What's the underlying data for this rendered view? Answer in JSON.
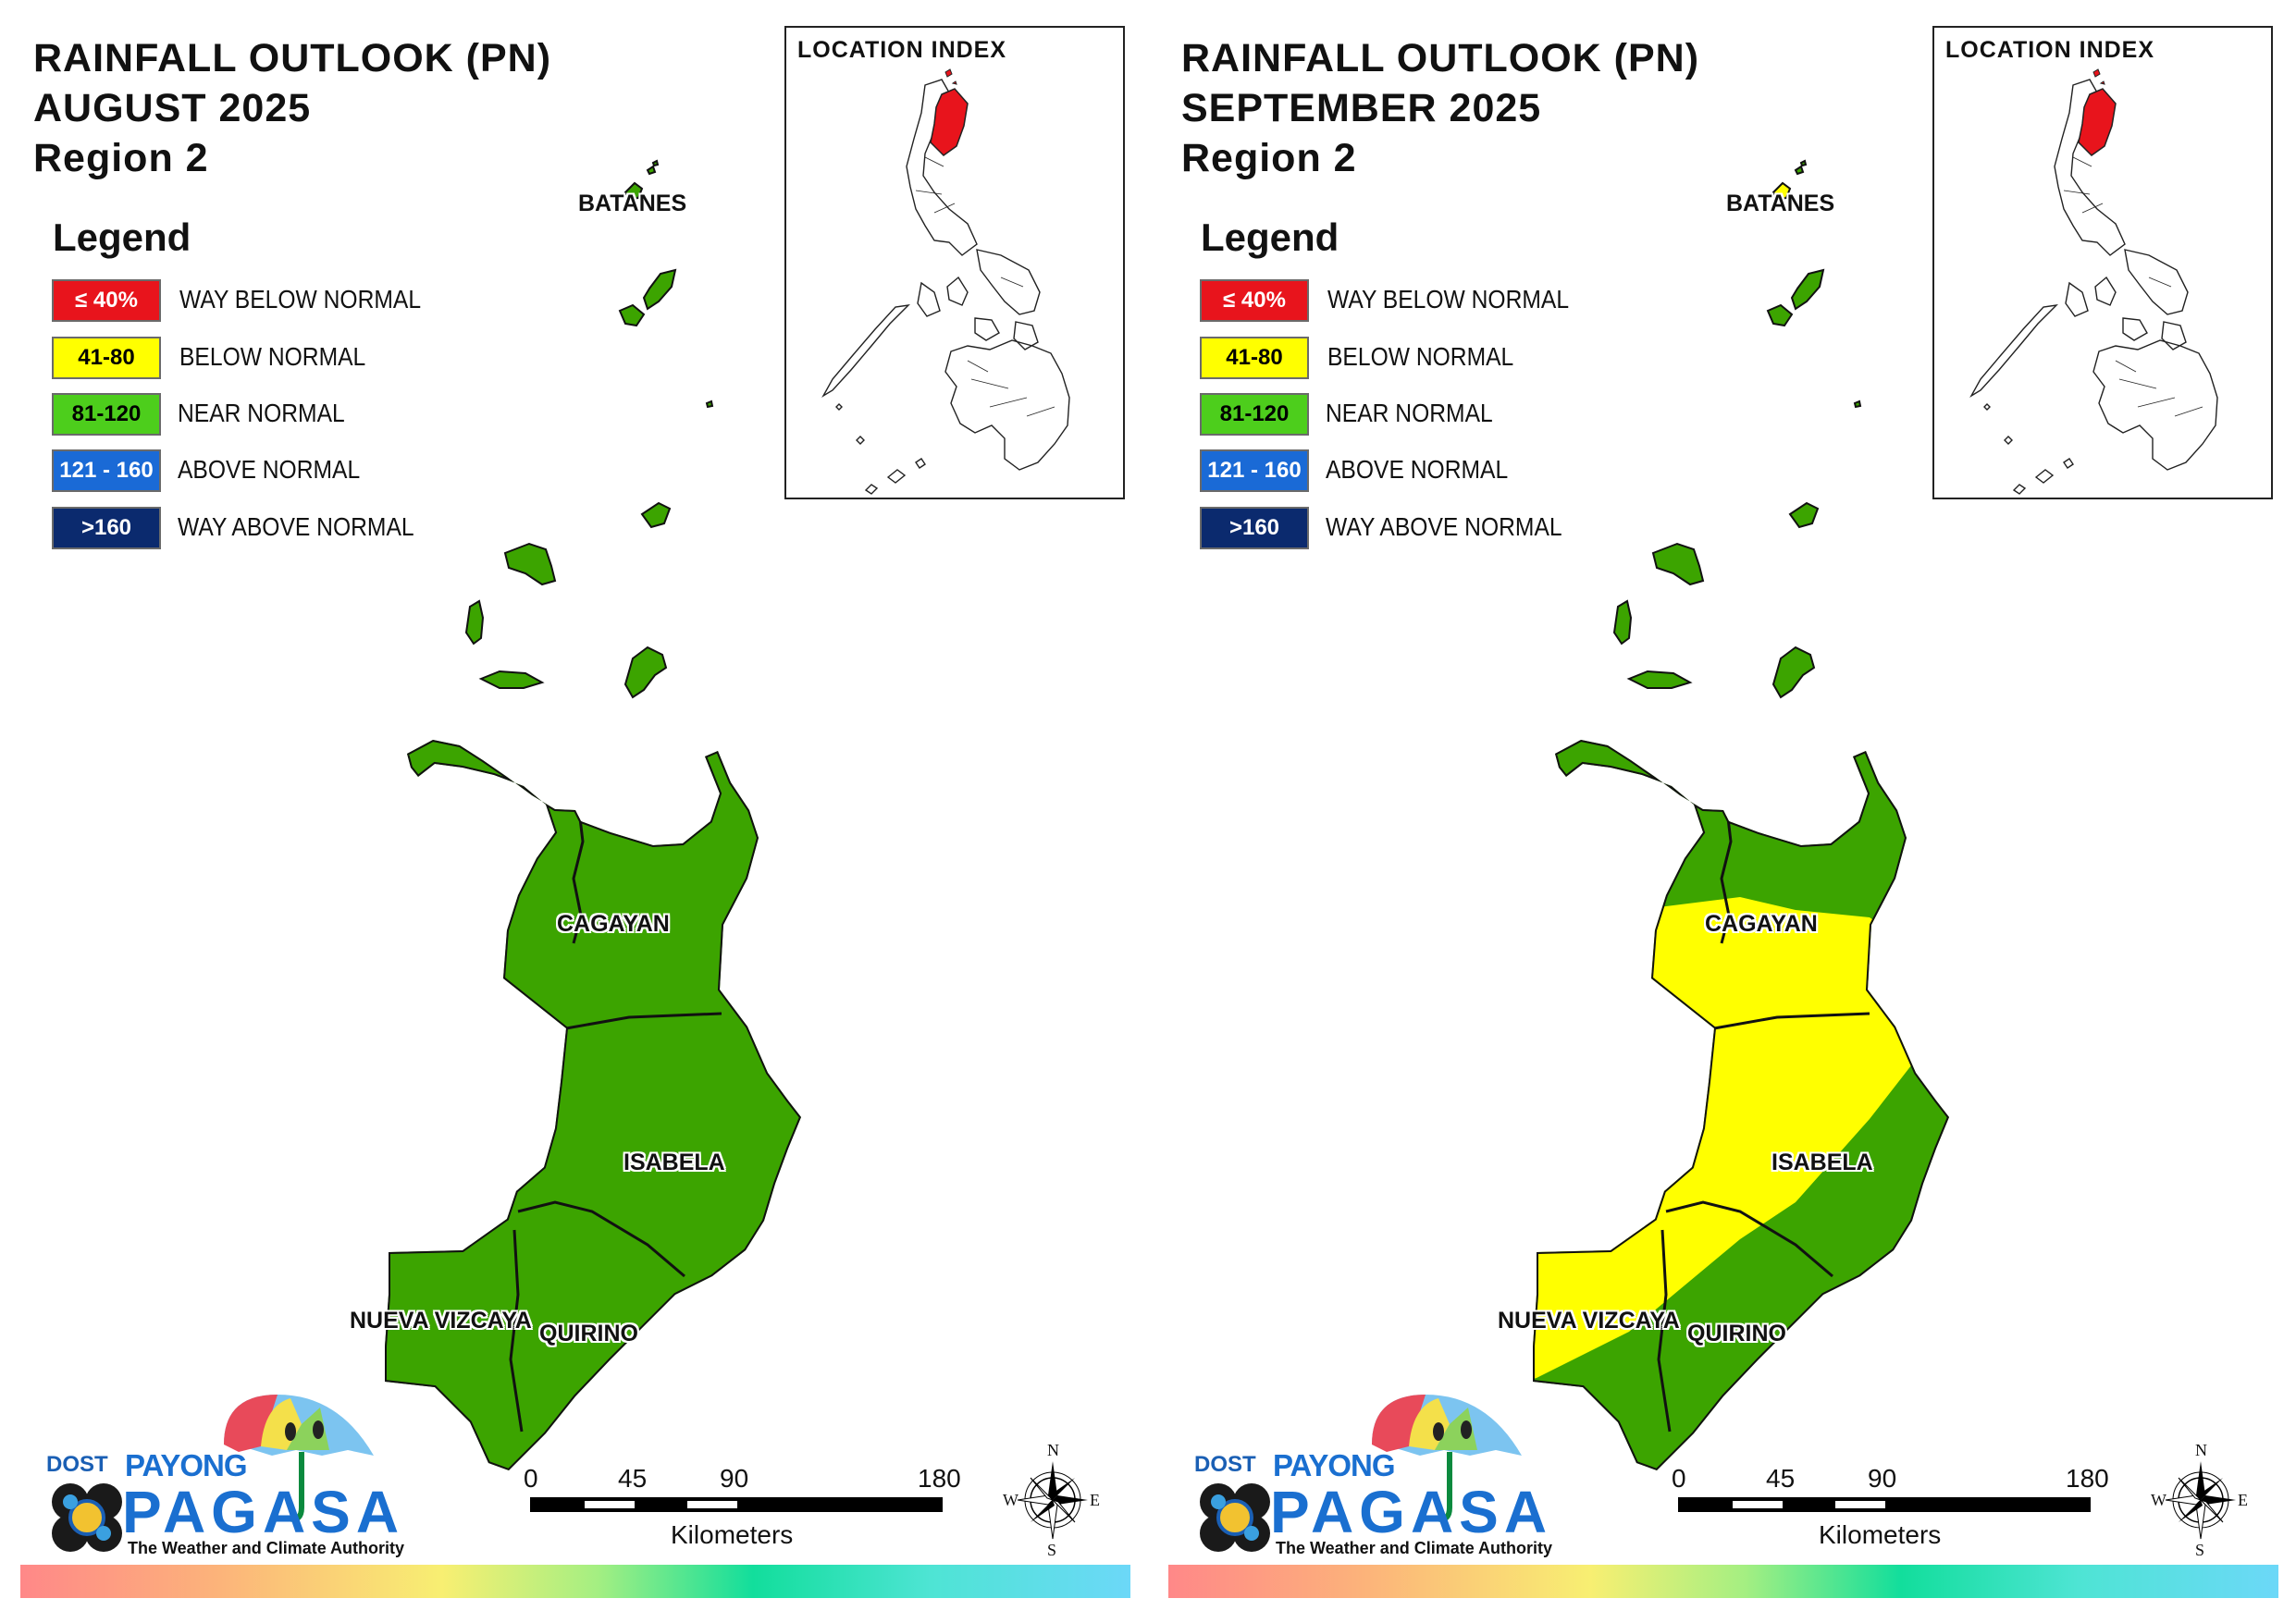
{
  "legend": {
    "heading": "Legend",
    "items": [
      {
        "range": "≤ 40%",
        "label": "WAY BELOW NORMAL",
        "color": "#e8141c",
        "text_color": "#ffffff"
      },
      {
        "range": "41-80",
        "label": "BELOW NORMAL",
        "color": "#ffff00",
        "text_color": "#000000"
      },
      {
        "range": "81-120",
        "label": "NEAR NORMAL",
        "color": "#4dce1c",
        "text_color": "#000000"
      },
      {
        "range": "121 - 160",
        "label": "ABOVE NORMAL",
        "color": "#1a6ad6",
        "text_color": "#ffffff"
      },
      {
        "range": ">160",
        "label": "WAY ABOVE NORMAL",
        "color": "#0b2a6e",
        "text_color": "#ffffff"
      }
    ]
  },
  "location_index": {
    "title": "LOCATION INDEX",
    "highlight_color": "#e8141c"
  },
  "provinces": {
    "batanes": "BATANES",
    "cagayan": "CAGAYAN",
    "isabela": "ISABELA",
    "nueva_vizcaya": "NUEVA VIZCAYA",
    "quirino": "QUIRINO"
  },
  "scale_bar": {
    "ticks": [
      "0",
      "45",
      "90",
      "180"
    ],
    "unit": "Kilometers"
  },
  "compass": {
    "n": "N",
    "s": "S",
    "e": "E",
    "w": "W"
  },
  "logo": {
    "dost": "DOST",
    "payong": "PAYONG",
    "pagasa": "PAGASA",
    "tagline": "The Weather and Climate Authority"
  },
  "map_colors": {
    "near_normal_fill": "#3ca400",
    "below_normal_fill": "#ffff00",
    "boundary": "#111111"
  },
  "panels": [
    {
      "title_line1": "RAINFALL OUTLOOK (PN)",
      "title_line2": "AUGUST 2025",
      "title_line3": "Region 2",
      "outlook": {
        "batanes": "Near Normal",
        "cagayan": "Near Normal",
        "isabela": "Near Normal",
        "nueva_vizcaya": "Near Normal",
        "quirino": "Near Normal"
      }
    },
    {
      "title_line1": "RAINFALL OUTLOOK (PN)",
      "title_line2": "SEPTEMBER 2025",
      "title_line3": "Region 2",
      "outlook": {
        "batanes": "Near Normal (north islet Below Normal)",
        "cagayan": "Below Normal (south-west) / Near Normal (north)",
        "isabela": "Below Normal (west) / Near Normal (east)",
        "nueva_vizcaya": "Below Normal (north-west) / Near Normal",
        "quirino": "Near Normal"
      }
    }
  ]
}
